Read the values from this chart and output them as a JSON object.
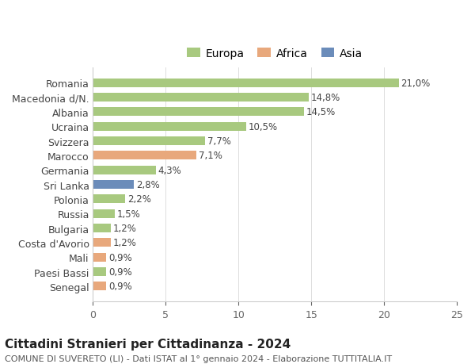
{
  "countries": [
    "Senegal",
    "Paesi Bassi",
    "Mali",
    "Costa d'Avorio",
    "Bulgaria",
    "Russia",
    "Polonia",
    "Sri Lanka",
    "Germania",
    "Marocco",
    "Svizzera",
    "Ucraina",
    "Albania",
    "Macedonia d/N.",
    "Romania"
  ],
  "values": [
    0.9,
    0.9,
    0.9,
    1.2,
    1.2,
    1.5,
    2.2,
    2.8,
    4.3,
    7.1,
    7.7,
    10.5,
    14.5,
    14.8,
    21.0
  ],
  "labels": [
    "0,9%",
    "0,9%",
    "0,9%",
    "1,2%",
    "1,2%",
    "1,5%",
    "2,2%",
    "2,8%",
    "4,3%",
    "7,1%",
    "7,7%",
    "10,5%",
    "14,5%",
    "14,8%",
    "21,0%"
  ],
  "continents": [
    "Africa",
    "Europa",
    "Africa",
    "Africa",
    "Europa",
    "Europa",
    "Europa",
    "Asia",
    "Europa",
    "Africa",
    "Europa",
    "Europa",
    "Europa",
    "Europa",
    "Europa"
  ],
  "colors": {
    "Europa": "#a8c97f",
    "Africa": "#e8a87c",
    "Asia": "#6b8cba"
  },
  "legend_order": [
    "Europa",
    "Africa",
    "Asia"
  ],
  "title1": "Cittadini Stranieri per Cittadinanza - 2024",
  "title2": "COMUNE DI SUVERETO (LI) - Dati ISTAT al 1° gennaio 2024 - Elaborazione TUTTITALIA.IT",
  "xlabel": "",
  "xlim": [
    0,
    25
  ],
  "xticks": [
    0,
    5,
    10,
    15,
    20,
    25
  ],
  "bg_color": "#ffffff",
  "bar_height": 0.6,
  "label_fontsize": 8.5,
  "tick_fontsize": 9,
  "title1_fontsize": 11,
  "title2_fontsize": 8
}
